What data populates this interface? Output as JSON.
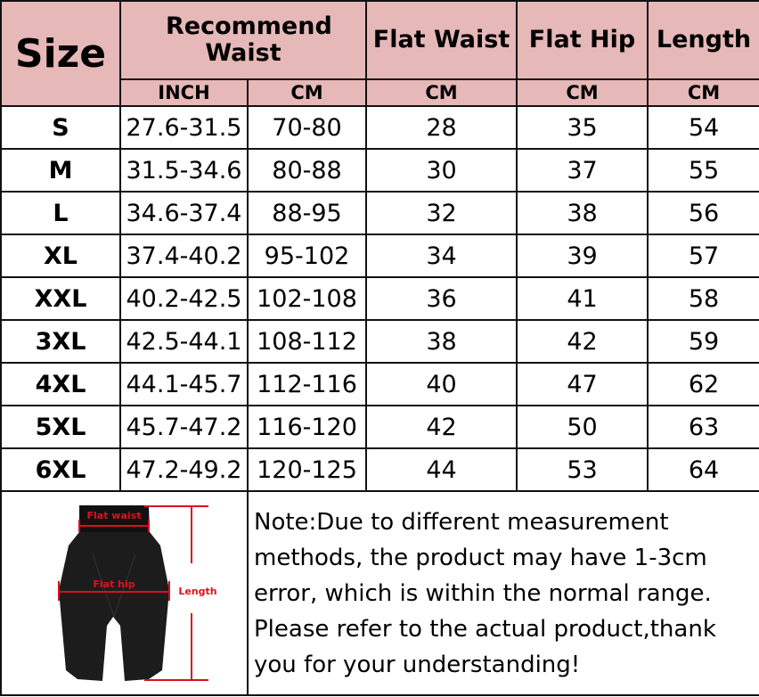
{
  "header": {
    "size": "Size",
    "recommend_waist": "Recommend Waist",
    "flat_waist": "Flat Waist",
    "flat_hip": "Flat Hip",
    "length": "Length",
    "units": [
      "INCH",
      "CM",
      "CM",
      "CM",
      "CM"
    ]
  },
  "rows": [
    [
      "S",
      "27.6-31.5",
      "70-80",
      "28",
      "35",
      "54"
    ],
    [
      "M",
      "31.5-34.6",
      "80-88",
      "30",
      "37",
      "55"
    ],
    [
      "L",
      "34.6-37.4",
      "88-95",
      "32",
      "38",
      "56"
    ],
    [
      "XL",
      "37.4-40.2",
      "95-102",
      "34",
      "39",
      "57"
    ],
    [
      "XXL",
      "40.2-42.5",
      "102-108",
      "36",
      "41",
      "58"
    ],
    [
      "3XL",
      "42.5-44.1",
      "108-112",
      "38",
      "42",
      "59"
    ],
    [
      "4XL",
      "44.1-45.7",
      "112-116",
      "40",
      "47",
      "62"
    ],
    [
      "5XL",
      "45.7-47.2",
      "116-120",
      "42",
      "50",
      "63"
    ],
    [
      "6XL",
      "47.2-49.2",
      "120-125",
      "44",
      "53",
      "64"
    ]
  ],
  "diagram": {
    "flat_waist": "Flat waist",
    "flat_hip": "Flat hip",
    "length": "Length"
  },
  "note": "Note:Due to different measurement methods, the product may have 1-3cm error, which is within the normal range. Please refer to the actual product,thank you for your understanding!",
  "colors": {
    "header_bg": "#e6b8b7",
    "measure_red": "#e0101e"
  }
}
